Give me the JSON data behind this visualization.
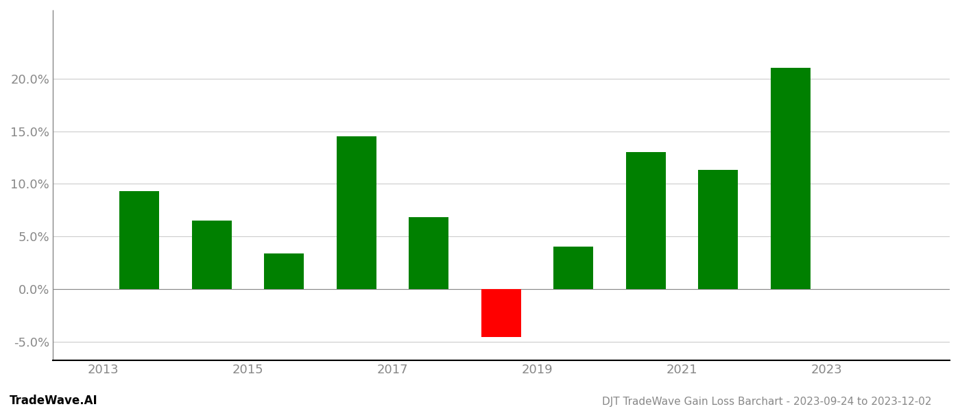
{
  "years": [
    2013,
    2014,
    2015,
    2016,
    2017,
    2018,
    2019,
    2020,
    2021,
    2022
  ],
  "values": [
    0.093,
    0.065,
    0.034,
    0.145,
    0.068,
    -0.046,
    0.04,
    0.13,
    0.113,
    0.21
  ],
  "colors": [
    "#008000",
    "#008000",
    "#008000",
    "#008000",
    "#008000",
    "#ff0000",
    "#008000",
    "#008000",
    "#008000",
    "#008000"
  ],
  "title": "DJT TradeWave Gain Loss Barchart - 2023-09-24 to 2023-12-02",
  "footer_left": "TradeWave.AI",
  "ylim_min": -0.068,
  "ylim_max": 0.265,
  "yticks": [
    -0.05,
    0.0,
    0.05,
    0.1,
    0.15,
    0.2
  ],
  "ytick_labels": [
    "-5.0%",
    "0.0%",
    "5.0%",
    "10.0%",
    "15.0%",
    "20.0%"
  ],
  "xtick_positions": [
    2012.5,
    2014.5,
    2016.5,
    2018.5,
    2020.5,
    2022.5
  ],
  "xtick_labels": [
    "2013",
    "2015",
    "2017",
    "2019",
    "2021",
    "2023"
  ],
  "bar_width": 0.55,
  "background_color": "#ffffff",
  "grid_color": "#cccccc",
  "axis_color": "#888888",
  "tick_label_color": "#888888",
  "title_fontsize": 11,
  "tick_fontsize": 13,
  "footer_fontsize": 12,
  "xlim_min": 2011.8,
  "xlim_max": 2024.2
}
